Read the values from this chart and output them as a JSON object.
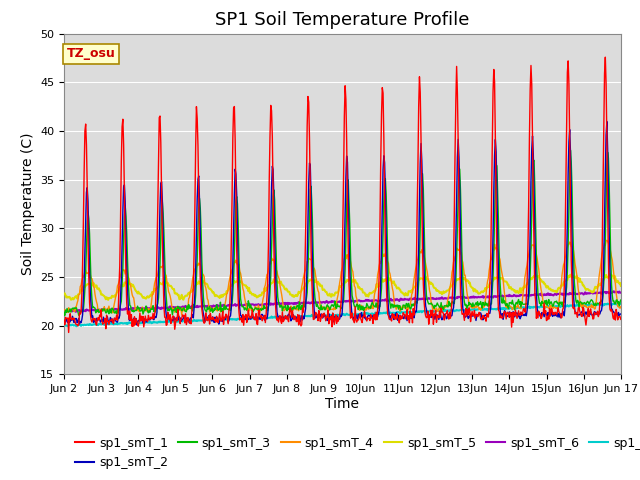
{
  "title": "SP1 Soil Temperature Profile",
  "ylabel": "Soil Temperature (C)",
  "xlabel": "Time",
  "tz_label": "TZ_osu",
  "ylim": [
    15,
    50
  ],
  "series_colors": {
    "sp1_smT_1": "#FF0000",
    "sp1_smT_2": "#0000BB",
    "sp1_smT_3": "#00BB00",
    "sp1_smT_4": "#FF8C00",
    "sp1_smT_5": "#DDDD00",
    "sp1_smT_6": "#9900BB",
    "sp1_smT_7": "#00CCCC"
  },
  "background_color": "#DCDCDC",
  "grid_color": "#FFFFFF",
  "legend_fontsize": 9,
  "title_fontsize": 13,
  "tick_fontsize": 8,
  "axis_label_fontsize": 10
}
